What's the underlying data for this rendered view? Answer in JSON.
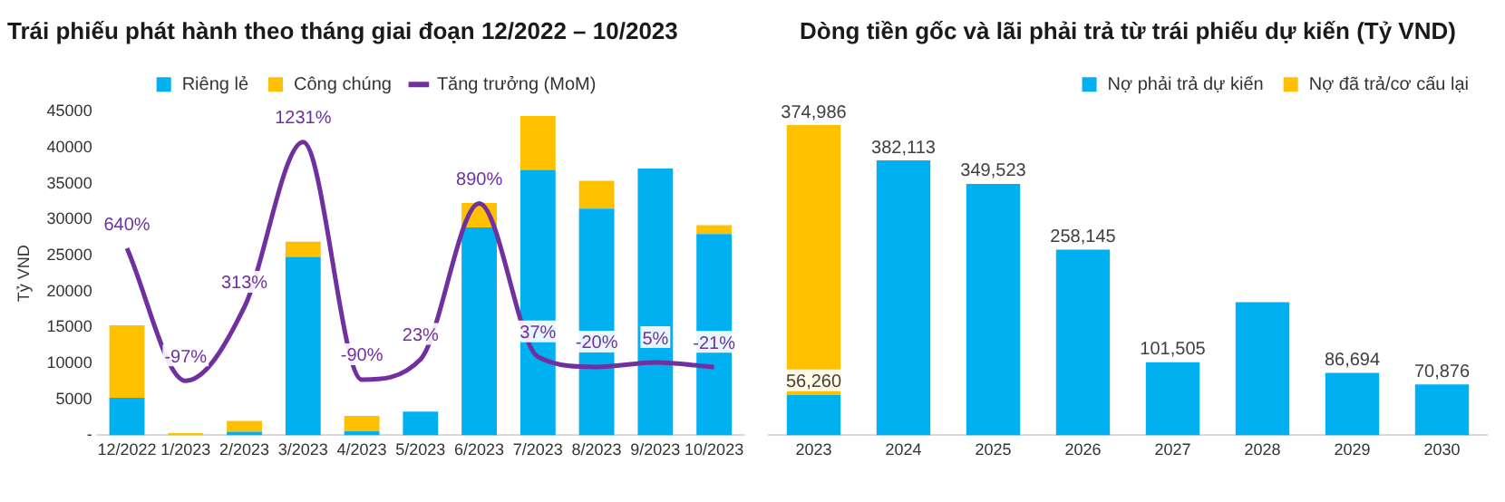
{
  "chart_data": [
    {
      "type": "bar",
      "title": "Trái phiếu phát hành theo tháng giai đoạn 12/2022 – 10/2023",
      "ylabel": "Tỷ VND",
      "stacked": true,
      "legend": "top",
      "grid": false,
      "categories": [
        "12/2022",
        "1/2023",
        "2/2023",
        "3/2023",
        "4/2023",
        "5/2023",
        "6/2023",
        "7/2023",
        "8/2023",
        "9/2023",
        "10/2023"
      ],
      "ylim": [
        0,
        45000
      ],
      "yticks": [
        {
          "value": 0,
          "label": "-"
        },
        5000,
        10000,
        15000,
        20000,
        25000,
        30000,
        35000,
        40000,
        45000
      ],
      "y2lim": [
        -400,
        1400
      ],
      "series": [
        {
          "name": "Riêng lẻ",
          "color": "#00b0f0",
          "values": [
            5200,
            null,
            500,
            24800,
            600,
            3300,
            28900,
            36900,
            31500,
            37100,
            28000
          ]
        },
        {
          "name": "Công chúng",
          "color": "#ffc000",
          "values": [
            10100,
            300,
            1500,
            2100,
            2100,
            0,
            3400,
            7500,
            3900,
            0,
            1200
          ]
        },
        {
          "name": "Tăng trưởng (MoM)",
          "type": "line",
          "axis": "y2",
          "marker": "none",
          "line_style": "solid",
          "color": "#7030a0",
          "values": [
            640,
            -97,
            313,
            1231,
            -90,
            23,
            890,
            37,
            -20,
            5,
            -21
          ],
          "value_labels": [
            "640%",
            "-97%",
            "313%",
            "1231%",
            "-90%",
            "23%",
            "890%",
            "37%",
            "-20%",
            "5%",
            "-21%"
          ]
        }
      ]
    },
    {
      "type": "bar",
      "title": "Dòng tiền gốc và lãi phải trả từ trái phiếu dự kiến (Tỷ VND)",
      "stacked": true,
      "legend": "top right",
      "grid": false,
      "tick_labels": "x",
      "categories": [
        "2023",
        "2024",
        "2025",
        "2026",
        "2027",
        "2028",
        "2029",
        "2030"
      ],
      "series": [
        {
          "name": "Nợ phải trả dự kiến",
          "color": "#00b0f0",
          "values": [
            56260,
            382113,
            349523,
            258145,
            101505,
            185000,
            86694,
            70876
          ],
          "value_labels": [
            "56,260",
            "382,113",
            "349,523",
            "258,145",
            "101,505",
            null,
            "86,694",
            "70,876"
          ]
        },
        {
          "name": "Nợ đã trả/cơ cấu lại",
          "color": "#ffc000",
          "values": [
            374986,
            null,
            null,
            null,
            null,
            null,
            null,
            null
          ],
          "value_labels": [
            "374,986",
            null,
            null,
            null,
            null,
            null,
            null,
            null
          ]
        }
      ]
    }
  ]
}
